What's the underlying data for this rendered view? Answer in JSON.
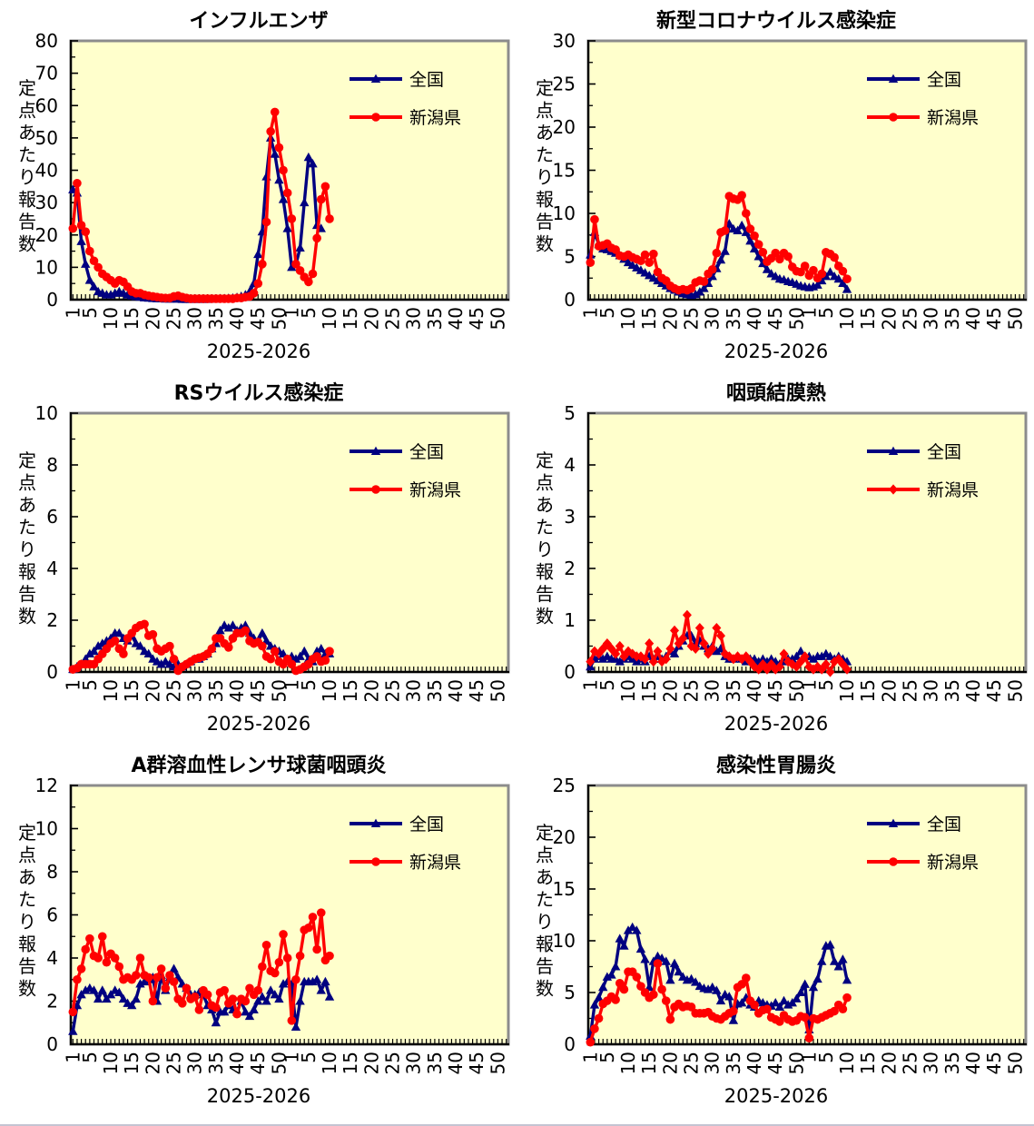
{
  "shared": {
    "y_axis_title": "定点あたり報告数",
    "x_axis_title": "2025-2026",
    "x_tick_labels_per_year": [
      1,
      5,
      10,
      15,
      20,
      25,
      30,
      35,
      40,
      45,
      50
    ],
    "weeks_per_year": 52,
    "years": [
      "2025",
      "2026"
    ],
    "legend_labels": [
      "全国",
      "新潟県"
    ],
    "colors": {
      "national_line": "#000080",
      "prefecture_line": "#FF0000",
      "plot_background": "#FFFFCC",
      "frame": "#8C8C8C",
      "axis": "#000000",
      "text": "#000000",
      "page_background": "#FFFFFF"
    }
  },
  "chart_data": [
    {
      "type": "line",
      "title": "インフルエンザ",
      "ylabel": "定点あたり報告数",
      "xlabel": "2025-2026",
      "ylim": [
        0,
        80
      ],
      "ystep": 10,
      "x_axis": "weeks 1-52 of 2025 followed by weeks 1-52 of 2026; data through week 10 of 2026",
      "legend_position": "upper-right",
      "series": [
        {
          "name": "全国",
          "color": "#000080",
          "marker": "triangle",
          "values": [
            34,
            33,
            18,
            11,
            6,
            4,
            2.5,
            2,
            1.5,
            1.5,
            2,
            2.5,
            2,
            1.5,
            1.2,
            1,
            0.8,
            0.6,
            0.5,
            0.4,
            0.3,
            0.3,
            0.2,
            0.2,
            0.2,
            0.2,
            0.1,
            0.1,
            0.1,
            0.1,
            0.1,
            0.1,
            0.1,
            0.2,
            0.2,
            0.3,
            0.3,
            0.4,
            0.5,
            0.7,
            1,
            1.5,
            2.5,
            5,
            14,
            21,
            38,
            50,
            45,
            37,
            31,
            22,
            10,
            11,
            16,
            30,
            44,
            42,
            23,
            22,
            null,
            null
          ]
        },
        {
          "name": "新潟県",
          "color": "#FF0000",
          "marker": "circle",
          "values": [
            22,
            36,
            23,
            21,
            15,
            12,
            10,
            8,
            7,
            6,
            5,
            6,
            5.5,
            4,
            2.5,
            2,
            2,
            1.5,
            1.2,
            1,
            0.8,
            0.6,
            0.5,
            0.5,
            1,
            1.2,
            0.8,
            0.5,
            0.3,
            0.3,
            0.3,
            0.3,
            0.3,
            0.3,
            0.3,
            0.3,
            0.3,
            0.3,
            0.3,
            0.5,
            0.5,
            0.8,
            1,
            2,
            5,
            11,
            24,
            52,
            58,
            47,
            40,
            33,
            25,
            11,
            9,
            7,
            5.5,
            8,
            19,
            31,
            35,
            25
          ]
        }
      ]
    },
    {
      "type": "line",
      "title": "新型コロナウイルス感染症",
      "ylabel": "定点あたり報告数",
      "xlabel": "2025-2026",
      "ylim": [
        0,
        30
      ],
      "ystep": 5,
      "x_axis": "weeks 1-52 of 2025 followed by weeks 1-52 of 2026; data through week 10 of 2026",
      "legend_position": "upper-right",
      "series": [
        {
          "name": "全国",
          "color": "#000080",
          "marker": "triangle",
          "values": [
            5.2,
            7.8,
            6.4,
            5.9,
            5.8,
            5.6,
            5.4,
            5.1,
            4.7,
            4.3,
            4,
            3.7,
            3.4,
            3.1,
            2.8,
            2.5,
            2.2,
            1.9,
            1.6,
            1.3,
            1.1,
            0.9,
            0.7,
            0.6,
            0.5,
            0.6,
            0.9,
            1.3,
            1.9,
            2.7,
            3.6,
            4.6,
            5.6,
            8.8,
            8.2,
            8,
            8.6,
            7.8,
            6.8,
            5.9,
            5,
            4.2,
            3.5,
            3,
            2.7,
            2.4,
            2.3,
            2.1,
            2,
            1.8,
            1.6,
            1.5,
            1.4,
            1.5,
            1.7,
            2.2,
            2.7,
            3.2,
            2.7,
            2.4,
            1.9,
            1.2
          ]
        },
        {
          "name": "新潟県",
          "color": "#FF0000",
          "marker": "circle",
          "values": [
            4.3,
            9.3,
            6.2,
            6.3,
            6.5,
            6,
            5.8,
            5.1,
            5,
            5.2,
            4.9,
            4.7,
            4.5,
            5.2,
            4.3,
            5.3,
            3.2,
            2.5,
            2.2,
            1.6,
            1.3,
            1.1,
            1.2,
            1.1,
            1.3,
            2,
            2.2,
            2.1,
            3,
            3.5,
            5.4,
            7.8,
            8,
            12,
            11.7,
            11.6,
            12.1,
            10,
            8.2,
            7.4,
            6.4,
            5.5,
            4.4,
            4.8,
            5.4,
            4.7,
            5.4,
            5,
            3.8,
            3.3,
            3.2,
            3.9,
            2.8,
            3.4,
            2.5,
            3,
            5.5,
            5.3,
            4.9,
            3.9,
            3.3,
            2.4
          ]
        }
      ]
    },
    {
      "type": "line",
      "title": "RSウイルス感染症",
      "ylabel": "定点あたり報告数",
      "xlabel": "2025-2026",
      "ylim": [
        0,
        10
      ],
      "ystep": 2,
      "x_axis": "weeks 1-52 of 2025 followed by weeks 1-52 of 2026; data through week 10 of 2026",
      "legend_position": "upper-right",
      "series": [
        {
          "name": "全国",
          "color": "#000080",
          "marker": "triangle",
          "values": [
            0.1,
            0.2,
            0.3,
            0.5,
            0.7,
            0.8,
            1,
            1.1,
            1.2,
            1.3,
            1.5,
            1.5,
            1.3,
            1.2,
            1.4,
            1.1,
            1,
            0.8,
            0.7,
            0.5,
            0.4,
            0.3,
            0.4,
            0.3,
            0.2,
            0.3,
            0.2,
            0.3,
            0.4,
            0.5,
            0.5,
            0.6,
            0.7,
            0.9,
            1.1,
            1.6,
            1.8,
            1.7,
            1.8,
            1.6,
            1.7,
            1.8,
            1.5,
            1.3,
            1.2,
            1.5,
            1.2,
            1,
            0.9,
            0.8,
            0.7,
            0.5,
            0.6,
            0.5,
            0.6,
            0.8,
            0.5,
            0.4,
            0.8,
            0.9,
            0.7,
            0.7
          ]
        },
        {
          "name": "新潟県",
          "color": "#FF0000",
          "marker": "circle",
          "values": [
            0.1,
            0.15,
            0.3,
            0.3,
            0.3,
            0.3,
            0.5,
            0.7,
            0.9,
            1.1,
            1.2,
            0.9,
            0.7,
            1.3,
            1.5,
            1.7,
            1.8,
            1.85,
            1.4,
            1.45,
            0.9,
            0.8,
            0.9,
            1,
            0.5,
            0.05,
            0.2,
            0.3,
            0.4,
            0.5,
            0.55,
            0.6,
            0.7,
            0.9,
            1.3,
            1.3,
            1.1,
            0.95,
            1.3,
            1.5,
            1.5,
            1.6,
            1.2,
            1.1,
            1.15,
            1,
            0.6,
            0.5,
            0.8,
            0.4,
            0.3,
            0.5,
            0.3,
            0.05,
            0.1,
            0.2,
            0.3,
            0.5,
            0.6,
            0.4,
            0.45,
            0.8
          ]
        }
      ]
    },
    {
      "type": "line",
      "title": "咽頭結膜熱",
      "ylabel": "定点あたり報告数",
      "xlabel": "2025-2026",
      "ylim": [
        0,
        5
      ],
      "ystep": 1,
      "x_axis": "weeks 1-52 of 2025 followed by weeks 1-52 of 2026; data through week 10 of 2026",
      "legend_position": "upper-right",
      "series": [
        {
          "name": "全国",
          "color": "#000080",
          "marker": "triangle",
          "values": [
            0.1,
            0.25,
            0.3,
            0.25,
            0.3,
            0.25,
            0.25,
            0.2,
            0.25,
            0.3,
            0.25,
            0.2,
            0.25,
            0.2,
            0.3,
            0.25,
            0.3,
            0.25,
            0.3,
            0.4,
            0.35,
            0.5,
            0.6,
            0.7,
            0.7,
            0.55,
            0.6,
            0.5,
            0.45,
            0.5,
            0.4,
            0.45,
            0.3,
            0.25,
            0.25,
            0.3,
            0.25,
            0.2,
            0.25,
            0.25,
            0.2,
            0.25,
            0.2,
            0.25,
            0.2,
            0.15,
            0.2,
            0.25,
            0.25,
            0.3,
            0.4,
            0.3,
            0.3,
            0.25,
            0.3,
            0.3,
            0.35,
            0.3,
            0.25,
            0.3,
            0.25,
            0.2
          ]
        },
        {
          "name": "新潟県",
          "color": "#FF0000",
          "marker": "diamond",
          "values": [
            0.2,
            0.4,
            0.35,
            0.45,
            0.55,
            0.45,
            0.35,
            0.5,
            0.3,
            0.4,
            0.35,
            0.3,
            0.3,
            0.25,
            0.55,
            0.2,
            0.4,
            0.2,
            0.25,
            0.45,
            0.8,
            0.55,
            0.65,
            1.1,
            0.5,
            0.45,
            0.85,
            0.55,
            0.35,
            0.45,
            0.85,
            0.7,
            0.35,
            0.3,
            0.25,
            0.3,
            0.25,
            0.3,
            0.2,
            0.1,
            0.05,
            0.15,
            0.05,
            0.15,
            0.05,
            0.1,
            0.35,
            0.2,
            0.15,
            0.1,
            0.2,
            0.3,
            0.1,
            0.05,
            0.1,
            0.05,
            0.15,
            0,
            0.2,
            0.25,
            0.15,
            0.05
          ]
        }
      ]
    },
    {
      "type": "line",
      "title": "A群溶血性レンサ球菌咽頭炎",
      "ylabel": "定点あたり報告数",
      "xlabel": "2025-2026",
      "ylim": [
        0,
        12
      ],
      "ystep": 2,
      "x_axis": "weeks 1-52 of 2025 followed by weeks 1-52 of 2026; data through week 10 of 2026",
      "legend_position": "upper-right",
      "series": [
        {
          "name": "全国",
          "color": "#000080",
          "marker": "triangle",
          "values": [
            0.6,
            1.8,
            2.3,
            2.5,
            2.6,
            2.5,
            2.1,
            2.5,
            2.1,
            2.3,
            2.5,
            2.4,
            2.1,
            1.9,
            1.8,
            2.1,
            2.8,
            2.9,
            3,
            3.1,
            2,
            3.2,
            2.5,
            3.1,
            3.5,
            3.1,
            2.8,
            2.6,
            2.3,
            2.3,
            2.4,
            2.3,
            1.8,
            1.6,
            1,
            1.5,
            1.5,
            1.8,
            1.6,
            1.5,
            2,
            1.5,
            1.3,
            1.6,
            2,
            2.2,
            2,
            2.5,
            2.3,
            2.1,
            2.8,
            2.9,
            2.8,
            0.8,
            2,
            2.9,
            2.9,
            2.9,
            3,
            2.5,
            2.9,
            2.2
          ]
        },
        {
          "name": "新潟県",
          "color": "#FF0000",
          "marker": "circle",
          "values": [
            1.5,
            3,
            3.5,
            4.4,
            4.9,
            4.1,
            4,
            5,
            3.8,
            4.2,
            4,
            3.6,
            3,
            3.1,
            3,
            3.2,
            4,
            3.2,
            3.1,
            2,
            3.1,
            3.5,
            2.6,
            3.2,
            2.9,
            2.1,
            1.9,
            2.6,
            2.1,
            2.2,
            1.6,
            2.5,
            2.3,
            1.8,
            1.7,
            2.4,
            2.5,
            1.9,
            2.1,
            1.4,
            2.1,
            2,
            2.6,
            2.3,
            2.5,
            3.6,
            4.6,
            3.4,
            3.3,
            3.8,
            5.1,
            4,
            1.1,
            3,
            4.1,
            5.3,
            5.4,
            5.9,
            4.4,
            6.1,
            3.9,
            4.1
          ]
        }
      ]
    },
    {
      "type": "line",
      "title": "感染性胃腸炎",
      "ylabel": "定点あたり報告数",
      "xlabel": "2025-2026",
      "ylim": [
        0,
        25
      ],
      "ystep": 5,
      "x_axis": "weeks 1-52 of 2025 followed by weeks 1-52 of 2026; data through week 10 of 2026",
      "legend_position": "upper-right",
      "series": [
        {
          "name": "全国",
          "color": "#000080",
          "marker": "triangle",
          "values": [
            0.8,
            3.8,
            4.5,
            5.5,
            6.5,
            6.7,
            7.5,
            10.2,
            9.5,
            11,
            11.3,
            11,
            9.2,
            8.2,
            5.5,
            8,
            8.5,
            8.3,
            8,
            6.2,
            7.8,
            7,
            6.5,
            6.2,
            6.3,
            6,
            5.6,
            5.4,
            5.3,
            5.5,
            5.2,
            4.2,
            4.8,
            4.6,
            2.3,
            3.9,
            4,
            4.5,
            3.8,
            3.6,
            4.2,
            4,
            3.8,
            3.7,
            4,
            3.6,
            4.2,
            3.8,
            4,
            4.4,
            5,
            5.8,
            1.4,
            5.5,
            6.3,
            8,
            9.5,
            9.6,
            8,
            7.5,
            8.2,
            6.2
          ]
        },
        {
          "name": "新潟県",
          "color": "#FF0000",
          "marker": "circle",
          "values": [
            0.2,
            1.5,
            2.5,
            3.9,
            4.2,
            4.6,
            4.3,
            5.9,
            5.3,
            7,
            7,
            6.5,
            5.6,
            5,
            4.5,
            4.8,
            7.8,
            5.3,
            4.2,
            2.4,
            3.6,
            3.9,
            3.6,
            3.7,
            3.6,
            3,
            3,
            3,
            3.1,
            2.7,
            2.5,
            2.4,
            2.7,
            3,
            3.2,
            5.5,
            5.8,
            6.4,
            4.2,
            3.8,
            3,
            3.3,
            3.4,
            2.6,
            2.4,
            2.2,
            2.8,
            2.4,
            2.2,
            2.3,
            2.7,
            2.6,
            0.6,
            2.5,
            2.4,
            2.6,
            2.8,
            3,
            3.2,
            3.8,
            3.4,
            4.5
          ]
        }
      ]
    }
  ]
}
